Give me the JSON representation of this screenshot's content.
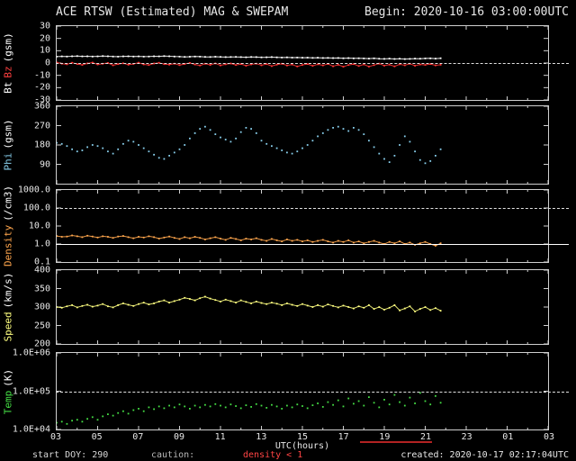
{
  "chart_data": {
    "type": "line",
    "title": "ACE RTSW (Estimated) MAG & SWEPAM",
    "begin": "Begin: 2020-10-16 03:00:00UTC",
    "xlabel": "UTC(hours)",
    "x_range": [
      3,
      27
    ],
    "x_tick_hours": [
      3,
      5,
      7,
      9,
      11,
      13,
      15,
      17,
      19,
      21,
      23,
      25,
      27
    ],
    "x_tick_labels": [
      "03",
      "05",
      "07",
      "09",
      "11",
      "13",
      "15",
      "17",
      "19",
      "21",
      "23",
      "01",
      "03"
    ],
    "caution_bar": {
      "from_hour": 17.8,
      "to_hour": 21.3,
      "color": "#b22222"
    },
    "footer": {
      "start": "start DOY: 290",
      "caution_label": "caution:",
      "caution_value": "density < 1",
      "created": "created: 2020-10-17 02:17:04UTC"
    },
    "panels": [
      {
        "name": "bt-bz",
        "ylim": [
          -30,
          30
        ],
        "log": false,
        "yticks": [
          {
            "v": 30,
            "label": "30"
          },
          {
            "v": 20,
            "label": "20"
          },
          {
            "v": 10,
            "label": "10"
          },
          {
            "v": 0,
            "label": "0"
          },
          {
            "v": -10,
            "label": "-10"
          },
          {
            "v": -20,
            "label": "-20"
          },
          {
            "v": -30,
            "label": "-30"
          }
        ],
        "label_parts": [
          {
            "text": "Bt",
            "color": "#ffffff"
          },
          {
            "text": "Bz",
            "color": "#ff4040"
          },
          {
            "text": "(gsm)",
            "color": "#ffffff"
          }
        ],
        "ref_lines": [
          {
            "v": 0,
            "style": "dashed"
          }
        ],
        "series": [
          {
            "name": "Bt",
            "color": "#ffffff",
            "line": true,
            "x_start": 3.0,
            "x_step": 0.25,
            "values": [
              5.2,
              5.4,
              5.3,
              5.5,
              5.6,
              5.4,
              5.5,
              5.3,
              5.4,
              5.6,
              5.5,
              5.3,
              5.2,
              5.4,
              5.5,
              5.3,
              5.4,
              5.2,
              5.3,
              5.5,
              5.4,
              5.6,
              5.5,
              5.3,
              5.2,
              5.0,
              5.1,
              5.3,
              5.2,
              5.0,
              4.9,
              5.1,
              5.0,
              4.8,
              4.9,
              5.0,
              4.8,
              4.7,
              4.9,
              4.8,
              4.6,
              4.7,
              4.8,
              4.6,
              4.5,
              4.6,
              4.4,
              4.5,
              4.3,
              4.4,
              4.2,
              4.3,
              4.1,
              4.2,
              4.0,
              4.1,
              3.9,
              4.0,
              3.8,
              3.9,
              3.7,
              3.6,
              3.8,
              3.5,
              3.4,
              3.6,
              3.3,
              3.5,
              3.2,
              3.4,
              3.6,
              3.5,
              3.7,
              3.8,
              3.6,
              3.9
            ]
          },
          {
            "name": "Bz",
            "color": "#ff3333",
            "line": true,
            "x_start": 3.0,
            "x_step": 0.25,
            "values": [
              0.5,
              -0.5,
              -1.0,
              0.2,
              -0.8,
              -1.5,
              -0.3,
              0.4,
              -1.2,
              -0.6,
              0.1,
              -1.8,
              -0.9,
              -0.2,
              -1.4,
              -0.7,
              0.3,
              -1.1,
              -1.6,
              -0.4,
              0.2,
              -0.9,
              -1.3,
              -0.5,
              -1.7,
              -0.8,
              0.1,
              -1.2,
              -2.0,
              -0.6,
              -1.5,
              -0.3,
              -1.9,
              -1.0,
              -0.4,
              -1.6,
              -0.8,
              -2.2,
              -1.1,
              -0.5,
              -1.8,
              -0.9,
              -2.5,
              -1.3,
              -0.6,
              -2.0,
              -1.2,
              -2.8,
              -1.5,
              -0.8,
              -2.3,
              -1.0,
              -1.9,
              -0.7,
              -2.6,
              -1.4,
              -3.0,
              -1.6,
              -0.9,
              -2.4,
              -1.1,
              -2.9,
              -1.7,
              -0.5,
              -2.1,
              -1.3,
              -2.7,
              -1.0,
              -1.8,
              -0.6,
              -2.2,
              -1.2,
              -1.5,
              -0.8,
              -1.9,
              -1.4
            ]
          }
        ]
      },
      {
        "name": "phi",
        "ylim": [
          0,
          360
        ],
        "log": false,
        "yticks": [
          {
            "v": 360,
            "label": "360"
          },
          {
            "v": 270,
            "label": "270"
          },
          {
            "v": 180,
            "label": "180"
          },
          {
            "v": 90,
            "label": "90"
          }
        ],
        "label_parts": [
          {
            "text": "Phi",
            "color": "#87ceeb"
          },
          {
            "text": "(gsm)",
            "color": "#ffffff"
          }
        ],
        "ref_lines": [],
        "series": [
          {
            "name": "Phi",
            "color": "#87ceeb",
            "line": false,
            "x_start": 3.0,
            "x_step": 0.25,
            "values": [
              190,
              185,
              175,
              160,
              150,
              155,
              170,
              180,
              175,
              165,
              150,
              140,
              160,
              185,
              200,
              195,
              180,
              165,
              150,
              135,
              120,
              115,
              130,
              145,
              160,
              180,
              210,
              235,
              255,
              265,
              250,
              230,
              215,
              205,
              195,
              210,
              240,
              260,
              255,
              235,
              200,
              185,
              175,
              165,
              155,
              145,
              140,
              150,
              165,
              180,
              200,
              220,
              235,
              250,
              260,
              265,
              255,
              245,
              260,
              250,
              230,
              200,
              170,
              140,
              115,
              100,
              130,
              180,
              220,
              195,
              150,
              110,
              95,
              105,
              130,
              160
            ]
          }
        ]
      },
      {
        "name": "density",
        "ylim": [
          0.1,
          1000
        ],
        "log": true,
        "yticks": [
          {
            "v": 1000,
            "label": "1000.0"
          },
          {
            "v": 100,
            "label": "100.0"
          },
          {
            "v": 10,
            "label": "10.0"
          },
          {
            "v": 1,
            "label": "1.0"
          },
          {
            "v": 0.1,
            "label": "0.1"
          }
        ],
        "label_parts": [
          {
            "text": "Density",
            "color": "#ffa64d"
          },
          {
            "text": "(/cm3)",
            "color": "#ffffff"
          }
        ],
        "ref_lines": [
          {
            "v": 100,
            "style": "dashed"
          },
          {
            "v": 1,
            "style": "solid"
          }
        ],
        "series": [
          {
            "name": "Density",
            "color": "#ffa64d",
            "line": true,
            "x_start": 3.0,
            "x_step": 0.25,
            "values": [
              2.8,
              2.5,
              2.6,
              3.0,
              2.7,
              2.4,
              2.9,
              2.6,
              2.3,
              2.7,
              2.5,
              2.2,
              2.6,
              2.8,
              2.4,
              2.1,
              2.5,
              2.3,
              2.7,
              2.4,
              2.0,
              2.3,
              2.6,
              2.2,
              1.9,
              2.4,
              2.1,
              2.5,
              2.2,
              1.8,
              2.1,
              2.4,
              2.0,
              1.7,
              2.2,
              1.9,
              1.6,
              2.0,
              1.8,
              2.1,
              1.7,
              1.5,
              1.9,
              1.6,
              1.4,
              1.8,
              1.5,
              1.7,
              1.4,
              1.6,
              1.3,
              1.5,
              1.7,
              1.4,
              1.2,
              1.5,
              1.3,
              1.6,
              1.2,
              1.4,
              1.1,
              1.3,
              1.5,
              1.2,
              1.0,
              1.3,
              1.1,
              1.4,
              1.0,
              1.2,
              0.9,
              1.1,
              1.3,
              1.0,
              0.8,
              1.1
            ]
          }
        ]
      },
      {
        "name": "speed",
        "ylim": [
          200,
          400
        ],
        "log": false,
        "yticks": [
          {
            "v": 400,
            "label": "400"
          },
          {
            "v": 350,
            "label": "350"
          },
          {
            "v": 300,
            "label": "300"
          },
          {
            "v": 250,
            "label": "250"
          },
          {
            "v": 200,
            "label": "200"
          }
        ],
        "label_parts": [
          {
            "text": "Speed",
            "color": "#ffff80"
          },
          {
            "text": "(km/s)",
            "color": "#ffffff"
          }
        ],
        "ref_lines": [],
        "series": [
          {
            "name": "Speed",
            "color": "#ffff80",
            "line": true,
            "x_start": 3.0,
            "x_step": 0.25,
            "values": [
              300,
              298,
              302,
              305,
              299,
              303,
              306,
              301,
              304,
              308,
              302,
              299,
              305,
              310,
              306,
              303,
              308,
              312,
              307,
              310,
              315,
              318,
              312,
              316,
              320,
              325,
              322,
              318,
              324,
              328,
              323,
              319,
              315,
              320,
              316,
              312,
              318,
              314,
              310,
              315,
              311,
              308,
              312,
              309,
              305,
              310,
              306,
              303,
              308,
              304,
              300,
              305,
              301,
              307,
              303,
              299,
              304,
              300,
              296,
              302,
              298,
              305,
              295,
              300,
              293,
              298,
              305,
              291,
              296,
              302,
              288,
              295,
              300,
              292,
              297,
              290
            ]
          }
        ]
      },
      {
        "name": "temp",
        "ylim": [
          10000,
          1000000
        ],
        "log": true,
        "yticks": [
          {
            "v": 1000000,
            "label": "1.0E+06"
          },
          {
            "v": 100000,
            "label": "1.0E+05"
          },
          {
            "v": 10000,
            "label": "1.0E+04"
          }
        ],
        "label_parts": [
          {
            "text": "Temp",
            "color": "#44dd44"
          },
          {
            "text": "(K)",
            "color": "#ffffff"
          }
        ],
        "ref_lines": [
          {
            "v": 100000,
            "style": "dashed"
          }
        ],
        "series": [
          {
            "name": "Temp",
            "color": "#44dd44",
            "line": false,
            "x_start": 3.0,
            "x_step": 0.25,
            "values": [
              15000,
              16000,
              14000,
              17000,
              18000,
              16000,
              19000,
              21000,
              18000,
              22000,
              25000,
              23000,
              27000,
              30000,
              26000,
              32000,
              35000,
              30000,
              38000,
              34000,
              40000,
              36000,
              42000,
              38000,
              45000,
              40000,
              35000,
              42000,
              38000,
              44000,
              40000,
              46000,
              42000,
              38000,
              45000,
              41000,
              36000,
              43000,
              39000,
              46000,
              42000,
              37000,
              44000,
              40000,
              35000,
              42000,
              38000,
              45000,
              41000,
              36000,
              43000,
              48000,
              39000,
              52000,
              44000,
              58000,
              40000,
              65000,
              47000,
              55000,
              42000,
              70000,
              50000,
              38000,
              60000,
              45000,
              80000,
              52000,
              42000,
              68000,
              48000,
              90000,
              55000,
              45000,
              75000,
              50000
            ]
          }
        ]
      }
    ]
  }
}
